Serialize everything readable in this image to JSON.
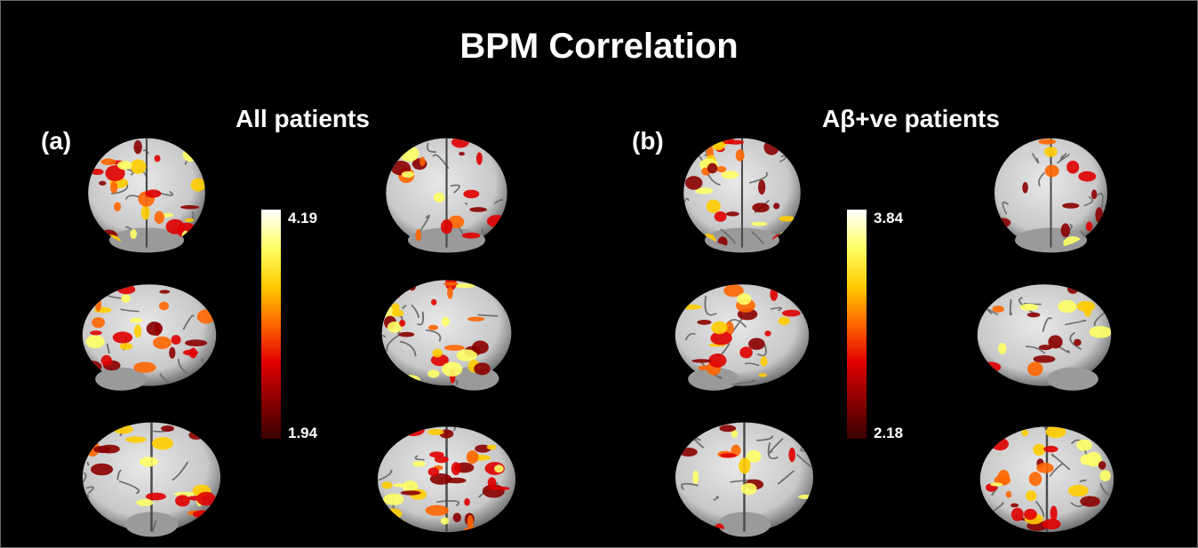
{
  "figure": {
    "title": "BPM Correlation",
    "panels": [
      {
        "label": "(a)",
        "title": "All patients",
        "scale_max": "4.19",
        "scale_min": "1.94"
      },
      {
        "label": "(b)",
        "title": "Aβ+ve patients",
        "scale_max": "3.84",
        "scale_min": "2.18"
      }
    ],
    "colormap": [
      "#ffffff",
      "#ffff66",
      "#ffcc00",
      "#ff6600",
      "#e00000",
      "#8b0000",
      "#3a0000"
    ],
    "brain_color": "#c8c8c8",
    "views": [
      "frontal",
      "posterior",
      "left-lateral",
      "right-lateral",
      "inferior",
      "superior"
    ]
  }
}
